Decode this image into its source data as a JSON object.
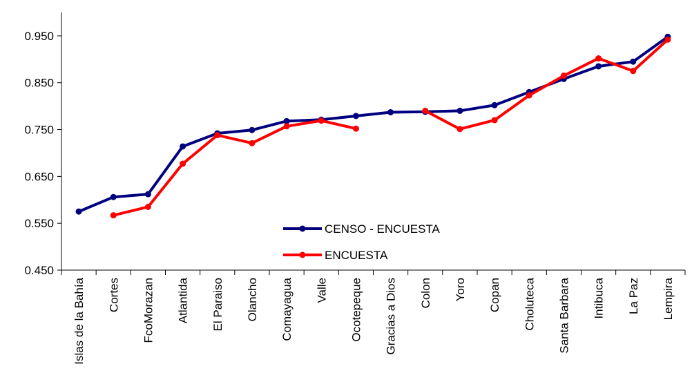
{
  "chart_data": {
    "type": "line",
    "categories": [
      "Islas de la Bahía",
      "Cortes",
      "FcoMorazan",
      "Atlantida",
      "El Paraiso",
      "Olancho",
      "Comayagua",
      "Valle",
      "Ocotepeque",
      "Gracias a Dios",
      "Colon",
      "Yoro",
      "Copan",
      "Choluteca",
      "Santa Barbara",
      "Intibuca",
      "La Paz",
      "Lempira"
    ],
    "series": [
      {
        "name": "CENSO - ENCUESTA",
        "color": "#00007f",
        "values": [
          0.575,
          0.606,
          0.612,
          0.714,
          0.742,
          0.749,
          0.768,
          0.771,
          0.779,
          0.787,
          0.788,
          0.79,
          0.802,
          0.83,
          0.858,
          0.885,
          0.895,
          0.948
        ]
      },
      {
        "name": "ENCUESTA",
        "color": "#ff0000",
        "values": [
          null,
          0.567,
          0.585,
          0.677,
          0.738,
          0.721,
          0.757,
          0.769,
          0.752,
          null,
          0.79,
          0.751,
          0.77,
          0.823,
          0.865,
          0.902,
          0.875,
          0.942
        ]
      }
    ],
    "yticks": [
      "0.450",
      "0.550",
      "0.650",
      "0.750",
      "0.850",
      "0.950"
    ],
    "ylim": [
      0.45,
      1.0
    ],
    "legend_position": "center-bottom"
  }
}
